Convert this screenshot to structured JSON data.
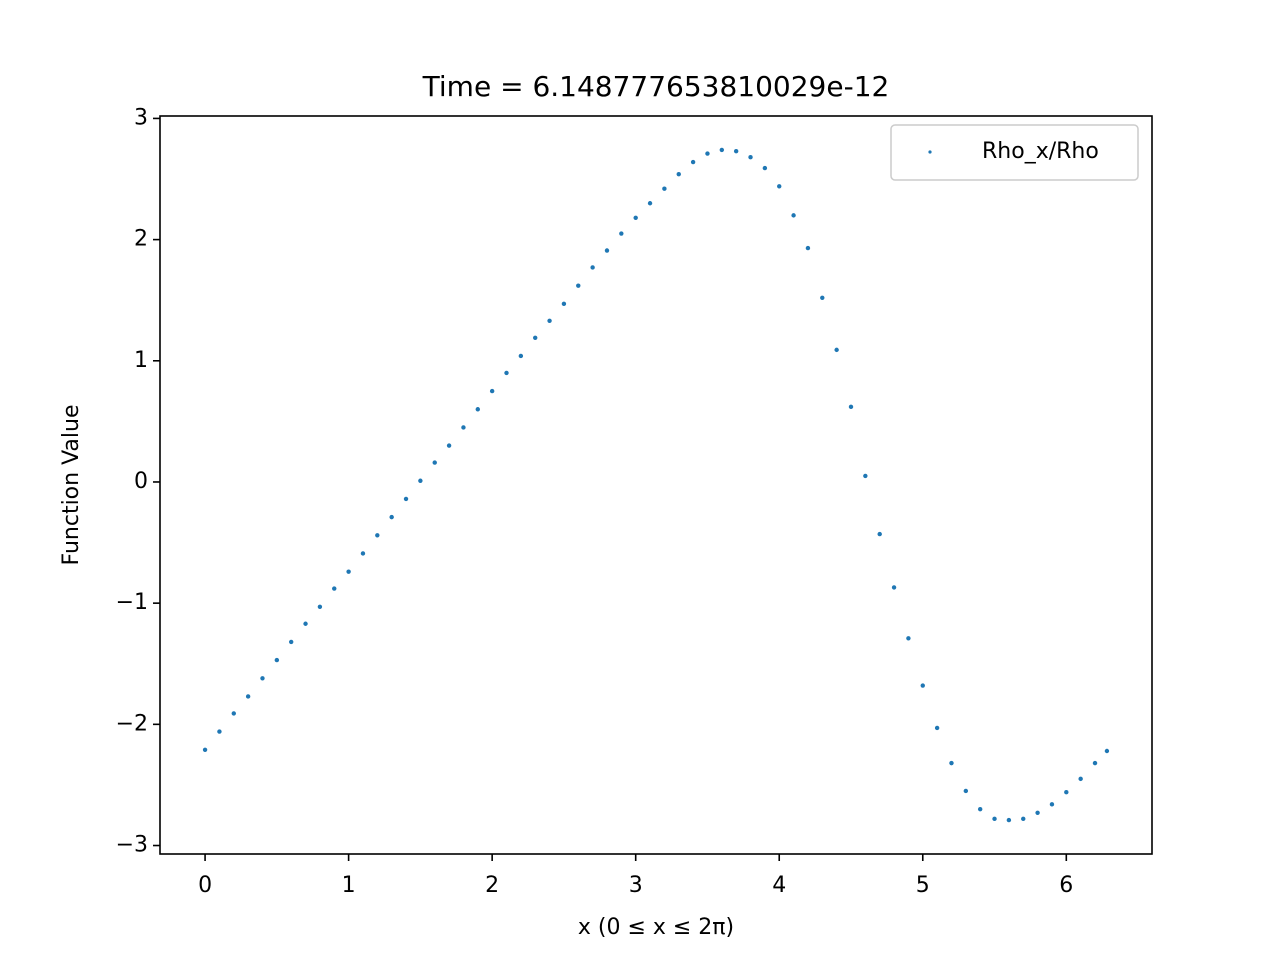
{
  "chart_data": {
    "type": "scatter",
    "title": "Time = 6.148777653810029e-12",
    "x_label": "x (0 ≤ x ≤ 2π)",
    "y_label": "Function Value",
    "xlim": [
      -0.314,
      6.597
    ],
    "ylim": [
      -3.07,
      3.02
    ],
    "xticks": [
      0,
      1,
      2,
      3,
      4,
      5,
      6
    ],
    "yticks": [
      {
        "value": -3,
        "label": "−3"
      },
      {
        "value": -2,
        "label": "−2"
      },
      {
        "value": -1,
        "label": "−1"
      },
      0,
      1,
      2,
      3
    ],
    "legend": "upper right",
    "series": [
      {
        "name": "Rho_x/Rho",
        "color": "#1f77b4",
        "x": [
          0,
          0.1,
          0.2,
          0.3,
          0.4,
          0.5,
          0.6,
          0.7,
          0.8,
          0.9,
          1.0,
          1.1,
          1.2,
          1.3,
          1.4,
          1.5,
          1.6,
          1.7,
          1.8,
          1.9,
          2.0,
          2.1,
          2.2,
          2.3,
          2.4,
          2.5,
          2.6,
          2.7,
          2.8,
          2.9,
          3.0,
          3.1,
          3.2,
          3.3,
          3.4,
          3.5,
          3.6,
          3.7,
          3.8,
          3.9,
          4.0,
          4.1,
          4.2,
          4.3,
          4.4,
          4.5,
          4.6,
          4.7,
          4.8,
          4.9,
          5.0,
          5.1,
          5.2,
          5.3,
          5.4,
          5.5,
          5.6,
          5.7,
          5.8,
          5.9,
          6.0,
          6.1,
          6.2,
          6.283
        ],
        "values": [
          -2.21,
          -2.06,
          -1.91,
          -1.77,
          -1.62,
          -1.47,
          -1.32,
          -1.17,
          -1.03,
          -0.88,
          -0.74,
          -0.59,
          -0.44,
          -0.29,
          -0.14,
          0.01,
          0.16,
          0.3,
          0.45,
          0.6,
          0.75,
          0.9,
          1.04,
          1.19,
          1.33,
          1.47,
          1.62,
          1.77,
          1.91,
          2.05,
          2.18,
          2.3,
          2.42,
          2.54,
          2.64,
          2.71,
          2.74,
          2.73,
          2.68,
          2.59,
          2.44,
          2.2,
          1.93,
          1.52,
          1.09,
          0.62,
          0.05,
          -0.43,
          -0.87,
          -1.29,
          -1.68,
          -2.03,
          -2.32,
          -2.55,
          -2.7,
          -2.78,
          -2.79,
          -2.78,
          -2.73,
          -2.66,
          -2.56,
          -2.45,
          -2.32,
          -2.22
        ]
      }
    ]
  }
}
